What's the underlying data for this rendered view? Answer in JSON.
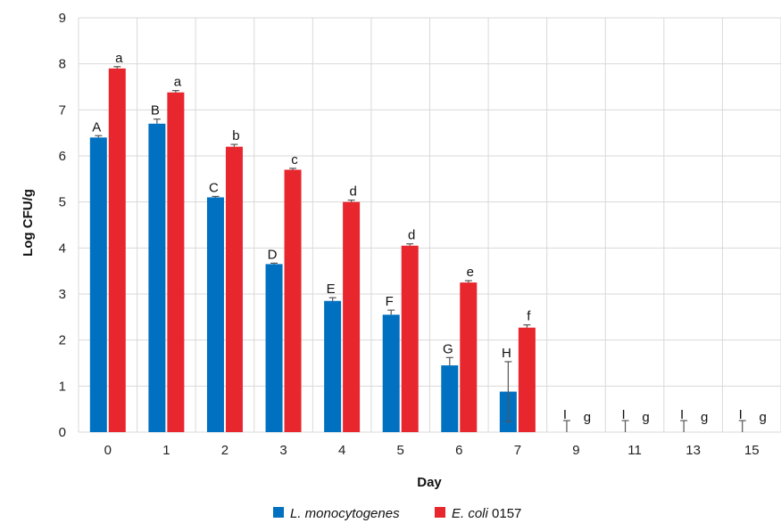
{
  "chart_data": {
    "type": "bar",
    "xlabel": "Day",
    "ylabel": "Log CFU/g",
    "ylim": [
      0,
      9
    ],
    "yticks": [
      "0",
      "1",
      "2",
      "3",
      "4",
      "5",
      "6",
      "7",
      "8",
      "9"
    ],
    "grid": true,
    "legend_position": "bottom",
    "categories": [
      "0",
      "1",
      "2",
      "3",
      "4",
      "5",
      "6",
      "7",
      "9",
      "11",
      "13",
      "15"
    ],
    "series": [
      {
        "legend_italic": "L. monocytogenes",
        "legend_plain": "",
        "color": "#0070c0",
        "values": [
          6.4,
          6.7,
          5.1,
          3.65,
          2.85,
          2.55,
          1.45,
          0.88,
          0,
          0,
          0,
          0
        ],
        "errors": [
          0.04,
          0.1,
          0.02,
          0.02,
          0.07,
          0.1,
          0.17,
          0.65,
          0.25,
          0.25,
          0.25,
          0.25
        ],
        "labels": [
          "A",
          "B",
          "C",
          "D",
          "E",
          "F",
          "G",
          "H",
          "I",
          "I",
          "I",
          "I"
        ]
      },
      {
        "legend_italic": "E. coli",
        "legend_plain": " 0157",
        "color": "#e8262d",
        "values": [
          7.9,
          7.38,
          6.2,
          5.7,
          5.0,
          4.05,
          3.25,
          2.27,
          0,
          0,
          0,
          0
        ],
        "errors": [
          0.04,
          0.04,
          0.05,
          0.03,
          0.04,
          0.04,
          0.04,
          0.06,
          0,
          0,
          0,
          0
        ],
        "labels": [
          "a",
          "a",
          "b",
          "c",
          "d",
          "d",
          "e",
          "f",
          "g",
          "g",
          "g",
          "g"
        ]
      }
    ]
  }
}
